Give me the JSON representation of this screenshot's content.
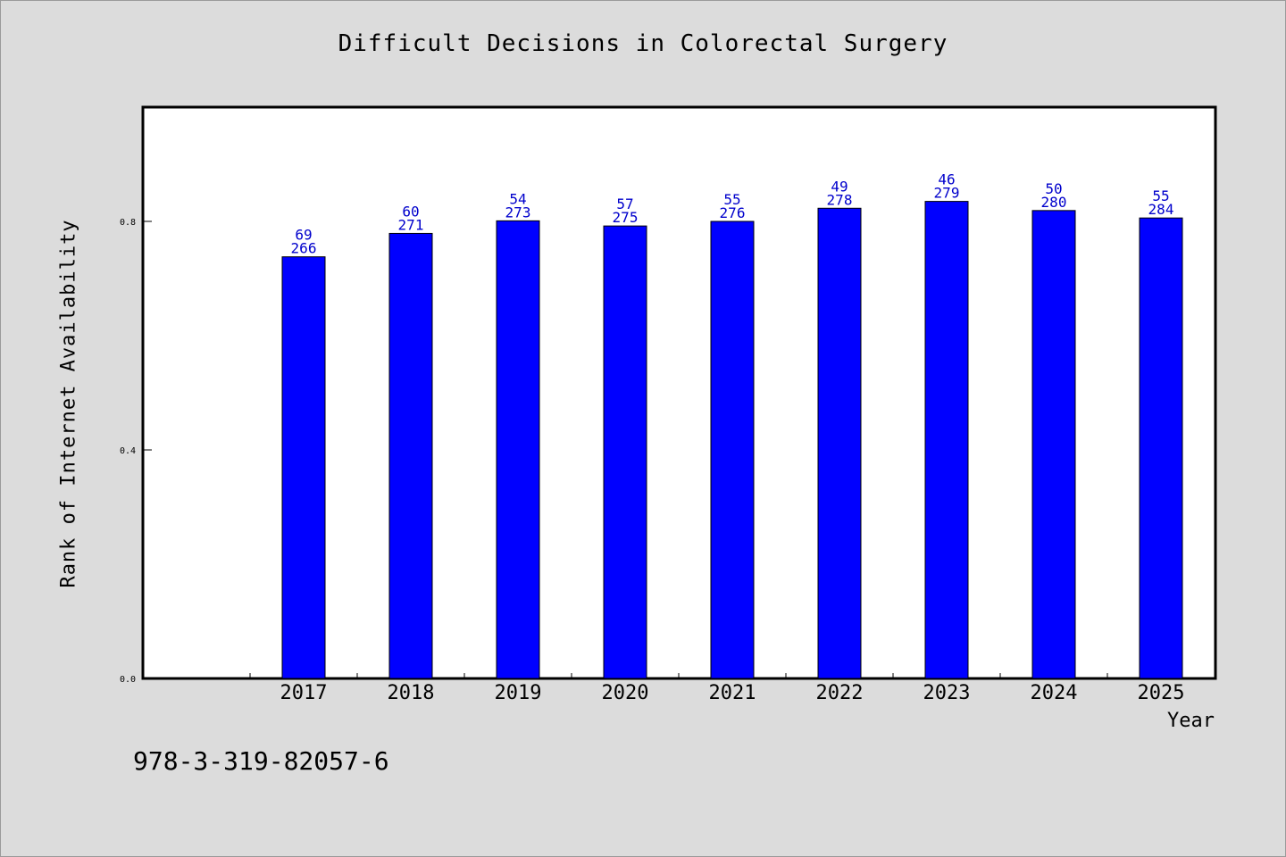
{
  "chart_data": {
    "type": "bar",
    "title": "Difficult Decisions in Colorectal Surgery",
    "xlabel": "Year",
    "ylabel": "Rank of Internet Availability",
    "categories": [
      "2017",
      "2018",
      "2019",
      "2020",
      "2021",
      "2022",
      "2023",
      "2024",
      "2025"
    ],
    "series": [
      {
        "values": [
          0.738,
          0.779,
          0.801,
          0.792,
          0.8,
          0.823,
          0.835,
          0.819,
          0.806
        ],
        "rank_labels": [
          "69",
          "60",
          "54",
          "57",
          "55",
          "49",
          "46",
          "50",
          "55"
        ],
        "count_labels": [
          "266",
          "271",
          "273",
          "275",
          "276",
          "278",
          "279",
          "280",
          "284"
        ]
      }
    ],
    "yticks": [
      "0.0",
      "0.4",
      "0.8"
    ],
    "ylim": [
      0,
      1.0
    ],
    "grid": false,
    "colors": {
      "bar": "#0000ff",
      "label": "#0000cc",
      "background": "#dcdcdc",
      "plot_area": "#ffffff"
    }
  },
  "footer": {
    "isbn": "978-3-319-82057-6"
  }
}
